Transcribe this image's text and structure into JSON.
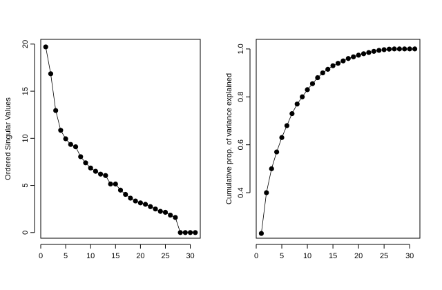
{
  "chart_data": [
    {
      "type": "scatter",
      "connected": true,
      "title": "",
      "xlabel": "",
      "ylabel": "Ordered Singular Values",
      "xlim": [
        0,
        32
      ],
      "ylim": [
        -0.6,
        20.5
      ],
      "xticks": [
        0,
        5,
        10,
        15,
        20,
        25,
        30
      ],
      "yticks": [
        0,
        5,
        10,
        15,
        20
      ],
      "ytick_labels": [
        "0",
        "5",
        "10",
        "15",
        "20"
      ],
      "grid": false,
      "x": [
        1,
        2,
        3,
        4,
        5,
        6,
        7,
        8,
        9,
        10,
        11,
        12,
        13,
        14,
        15,
        16,
        17,
        18,
        19,
        20,
        21,
        22,
        23,
        24,
        25,
        26,
        27,
        28,
        29,
        30,
        31
      ],
      "y": [
        19.7,
        16.85,
        12.95,
        10.85,
        9.95,
        9.35,
        9.1,
        8.05,
        7.4,
        6.85,
        6.5,
        6.2,
        6.05,
        5.15,
        5.15,
        4.5,
        4.05,
        3.65,
        3.35,
        3.15,
        3.0,
        2.75,
        2.5,
        2.25,
        2.15,
        1.85,
        1.6,
        0.0,
        0.0,
        0.0,
        0.0
      ]
    },
    {
      "type": "scatter",
      "connected": true,
      "title": "",
      "xlabel": "",
      "ylabel": "Cumulative prop. of variance explained",
      "xlim": [
        0,
        32
      ],
      "ylim": [
        0.21,
        1.04
      ],
      "xticks": [
        0,
        5,
        10,
        15,
        20,
        25,
        30
      ],
      "yticks": [
        0.4,
        0.6,
        0.8,
        1.0
      ],
      "ytick_labels": [
        "0.4",
        "0.6",
        "0.8",
        "1.0"
      ],
      "grid": false,
      "x": [
        1,
        2,
        3,
        4,
        5,
        6,
        7,
        8,
        9,
        10,
        11,
        12,
        13,
        14,
        15,
        16,
        17,
        18,
        19,
        20,
        21,
        22,
        23,
        24,
        25,
        26,
        27,
        28,
        29,
        30,
        31
      ],
      "y": [
        0.23,
        0.4,
        0.5,
        0.57,
        0.63,
        0.68,
        0.73,
        0.77,
        0.8,
        0.83,
        0.855,
        0.88,
        0.9,
        0.915,
        0.93,
        0.94,
        0.95,
        0.96,
        0.967,
        0.974,
        0.98,
        0.985,
        0.99,
        0.994,
        0.997,
        0.999,
        1.0,
        1.0,
        1.0,
        1.0,
        1.0
      ]
    }
  ]
}
